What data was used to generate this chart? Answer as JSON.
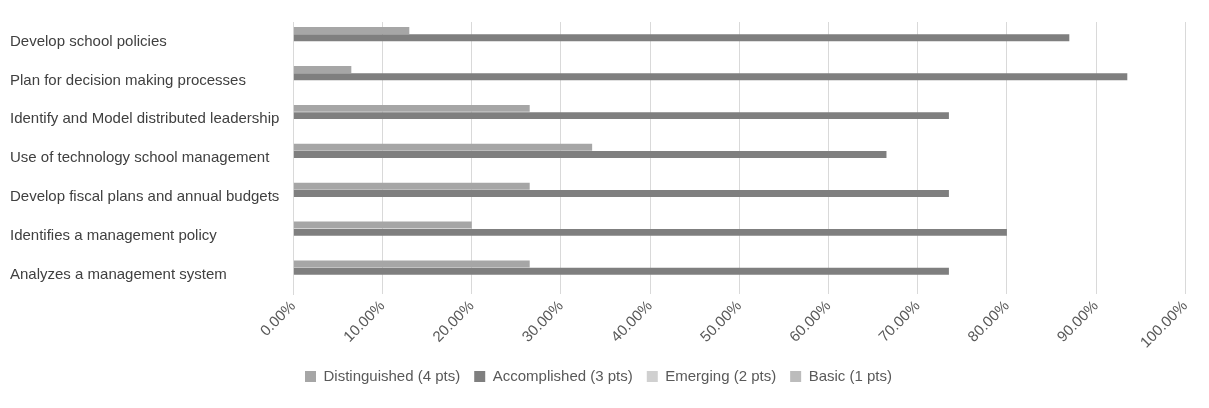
{
  "chart_data": {
    "type": "bar",
    "orientation": "horizontal",
    "categories": [
      "Develop school policies",
      "Plan for decision making processes",
      "Identify and Model distributed leadership",
      "Use of technology school management",
      "Develop fiscal plans and annual budgets",
      "Identifies a management policy",
      "Analyzes a management system"
    ],
    "series": [
      {
        "name": "Distinguished (4 pts)",
        "color": "#a6a6a6",
        "values": [
          13,
          6.5,
          26.5,
          33.5,
          26.5,
          20,
          26.5
        ]
      },
      {
        "name": "Accomplished (3 pts)",
        "color": "#7f7f7f",
        "values": [
          87,
          93.5,
          73.5,
          66.5,
          73.5,
          80,
          73.5
        ]
      },
      {
        "name": "Emerging (2 pts)",
        "color": "#d0d0d0",
        "values": [
          0,
          0,
          0,
          0,
          0,
          0,
          0
        ]
      },
      {
        "name": "Basic (1 pts)",
        "color": "#bcbcbc",
        "values": [
          0,
          0,
          0,
          0,
          0,
          0,
          0
        ]
      }
    ],
    "xlim": [
      0,
      100
    ],
    "xticks": [
      {
        "value": 0,
        "label": "0.00%"
      },
      {
        "value": 10,
        "label": "10.00%"
      },
      {
        "value": 20,
        "label": "20.00%"
      },
      {
        "value": 30,
        "label": "30.00%"
      },
      {
        "value": 40,
        "label": "40.00%"
      },
      {
        "value": 50,
        "label": "50.00%"
      },
      {
        "value": 60,
        "label": "60.00%"
      },
      {
        "value": 70,
        "label": "70.00%"
      },
      {
        "value": 80,
        "label": "80.00%"
      },
      {
        "value": 90,
        "label": "90.00%"
      },
      {
        "value": 100,
        "label": "100.00%"
      }
    ],
    "grid": "x",
    "legend": "bottom"
  }
}
